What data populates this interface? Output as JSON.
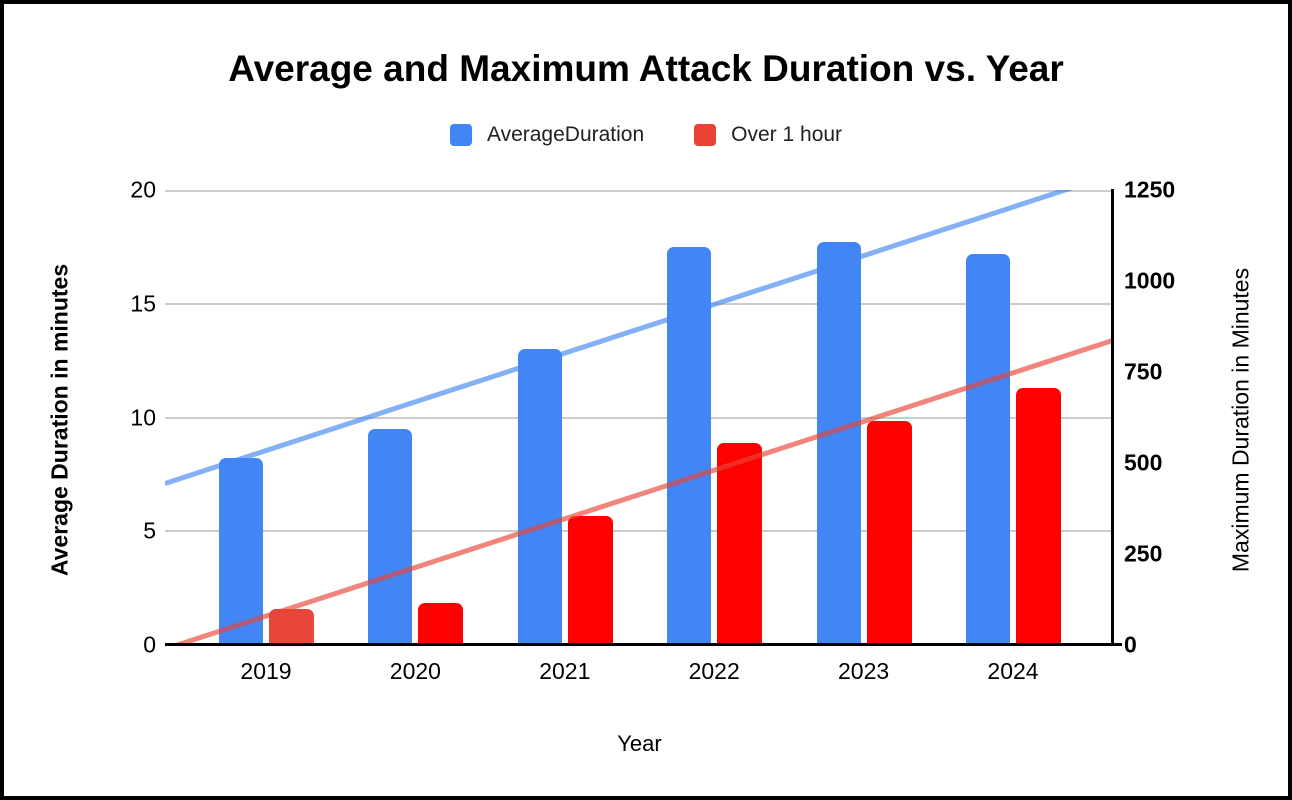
{
  "legend": {
    "items": [
      {
        "label": "AverageDuration",
        "color": "#4285F4"
      },
      {
        "label": "Over 1 hour",
        "color": "#EA4335"
      }
    ]
  },
  "chart_data": {
    "type": "bar",
    "title": "Average and Maximum Attack Duration vs. Year",
    "categories": [
      "2019",
      "2020",
      "2021",
      "2022",
      "2023",
      "2024"
    ],
    "series": [
      {
        "name": "AverageDuration",
        "axis": "left",
        "color": "#4285F4",
        "values": [
          8.2,
          9.5,
          13.0,
          17.5,
          17.7,
          17.2
        ]
      },
      {
        "name": "Over 1 hour",
        "axis": "right",
        "color": "#FF0000",
        "bar_colors": [
          "#E8463A",
          "#FF0000",
          "#FF0000",
          "#FF0000",
          "#FF0000",
          "#FF0000"
        ],
        "values": [
          100,
          115,
          355,
          555,
          615,
          705
        ]
      }
    ],
    "trendlines": [
      {
        "series": "AverageDuration",
        "axis": "left",
        "color": "#4285F4",
        "opacity": 0.65,
        "start_value": 7.1,
        "end_value": 20.7
      },
      {
        "series": "Over 1 hour",
        "axis": "right",
        "color": "#EA4335",
        "opacity": 0.65,
        "start_value": -11,
        "end_value": 838
      }
    ],
    "axes": {
      "left": {
        "label": "Average Duration in minutes",
        "ticks": [
          0,
          5,
          10,
          15,
          20
        ],
        "max": 20
      },
      "right": {
        "label": "Maximum Duration in Minutes",
        "ticks": [
          0,
          250,
          500,
          750,
          1000,
          1250
        ],
        "max": 1250
      },
      "x": {
        "label": "Year"
      }
    },
    "grid": {
      "color": "#cccccc",
      "lines_at_left_values": [
        5,
        10,
        15,
        20
      ]
    },
    "legend_position": "top"
  }
}
